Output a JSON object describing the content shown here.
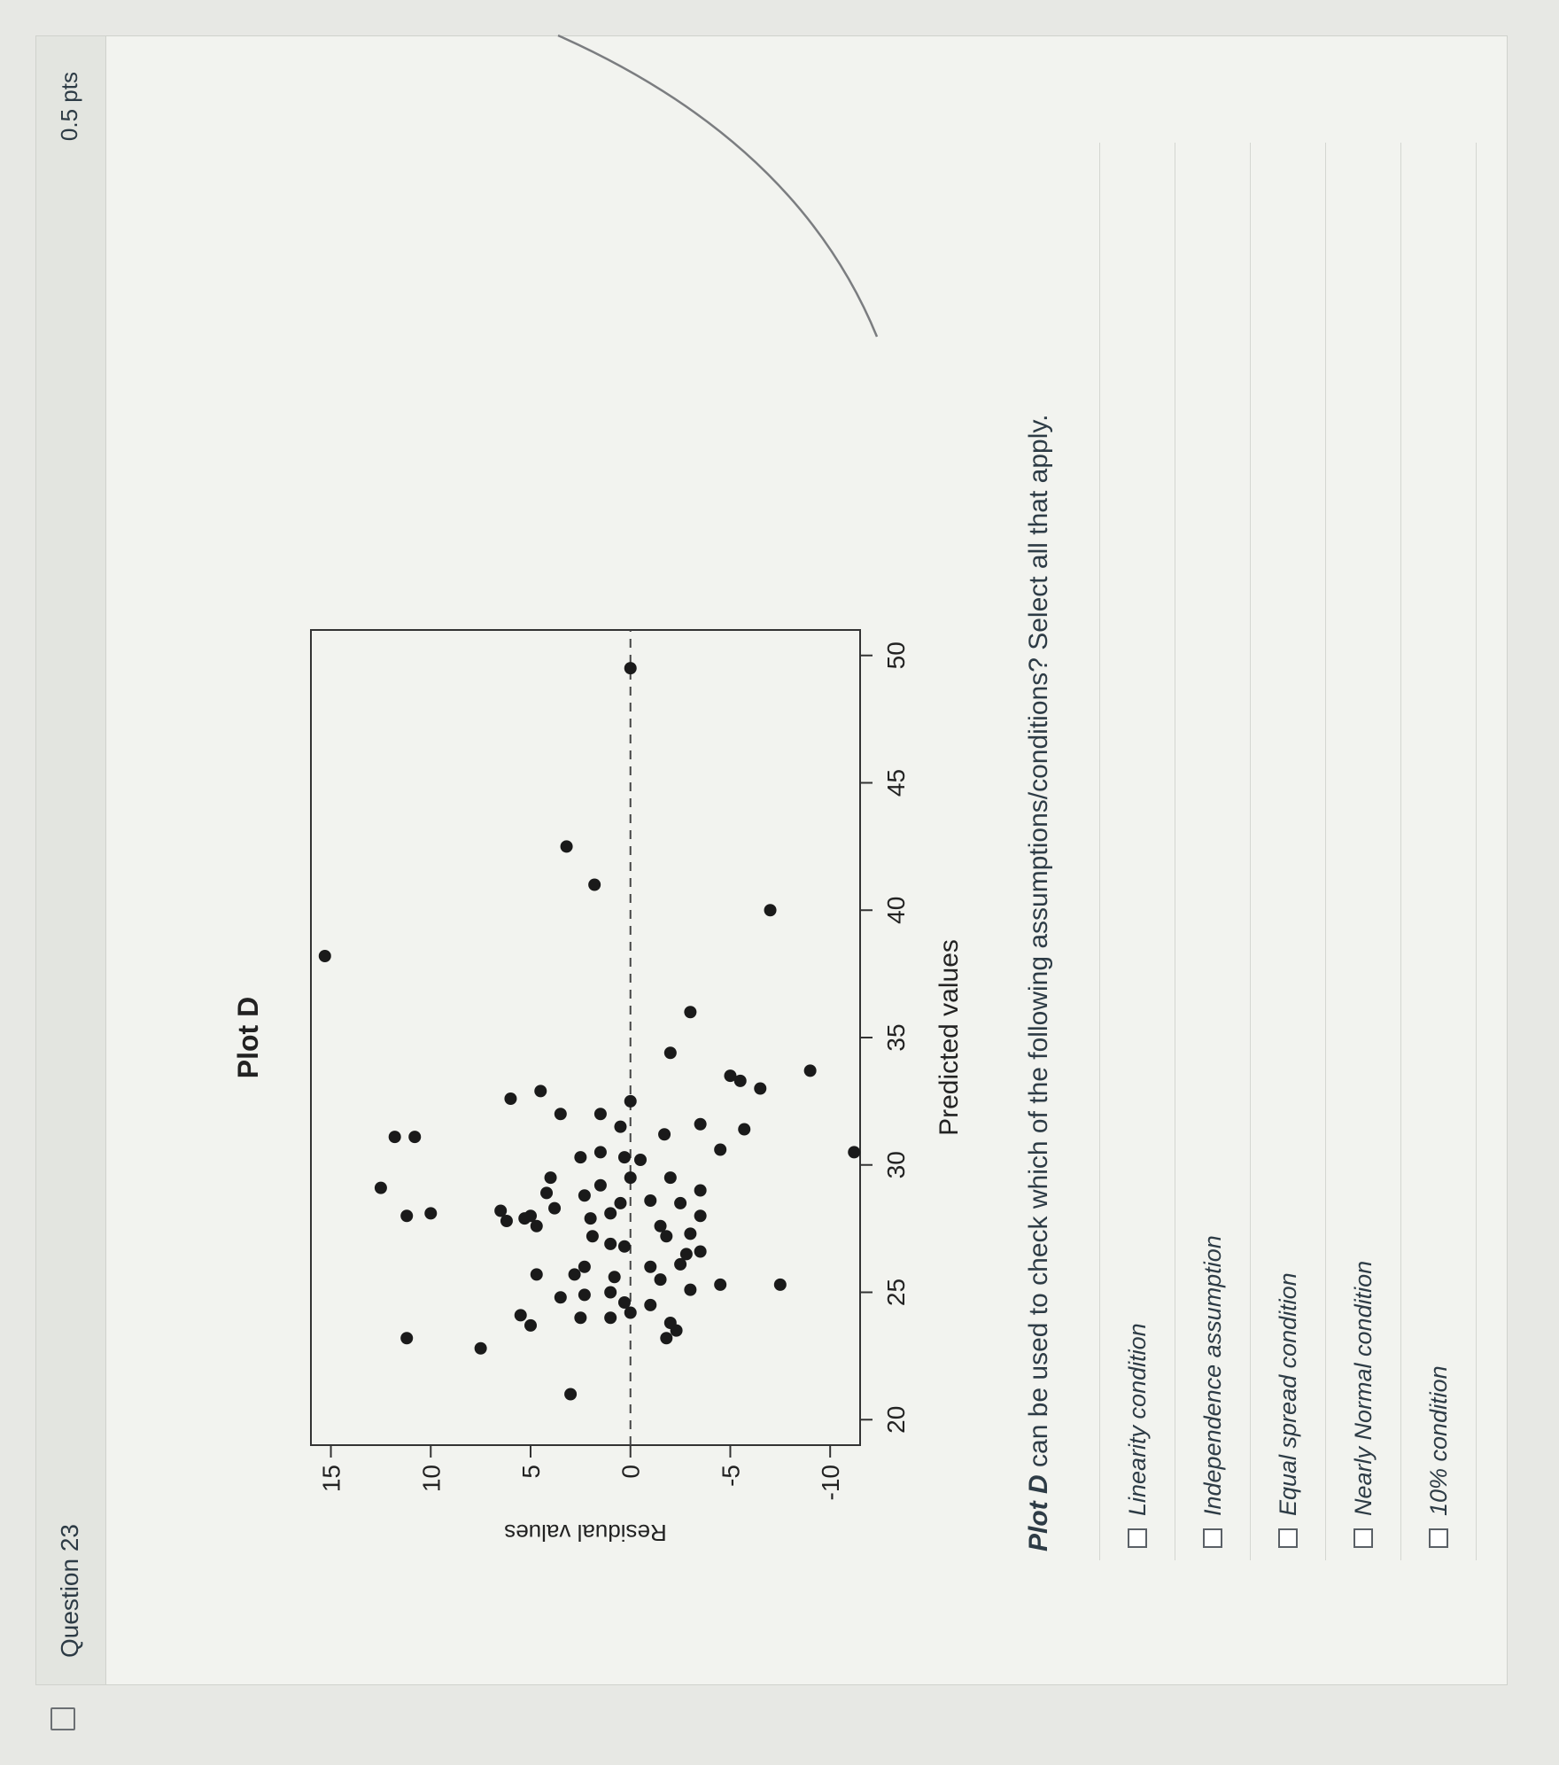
{
  "question": {
    "title": "Question 23",
    "points": "0.5 pts",
    "prompt_emphasis": "Plot D",
    "prompt_rest": " can be used to check which of the following assumptions/conditions? Select all that apply."
  },
  "answers": [
    {
      "label": "Linearity condition"
    },
    {
      "label": "Independence assumption"
    },
    {
      "label": "Equal spread condition"
    },
    {
      "label": "Nearly Normal condition"
    },
    {
      "label": "10% condition"
    }
  ],
  "chart_data": {
    "type": "scatter",
    "title": "Plot D",
    "xlabel": "Predicted values",
    "ylabel": "Residual values",
    "xlim": [
      19,
      51
    ],
    "ylim": [
      -11.5,
      16
    ],
    "xticks": [
      20,
      25,
      30,
      35,
      40,
      45,
      50
    ],
    "yticks": [
      -10,
      -5,
      0,
      5,
      10,
      15
    ],
    "reference_line": {
      "y": 0,
      "style": "dashed"
    },
    "points": [
      [
        21,
        3
      ],
      [
        22.8,
        7.5
      ],
      [
        23.2,
        11.2
      ],
      [
        23.7,
        5.0
      ],
      [
        23.2,
        -1.8
      ],
      [
        23.5,
        -2.3
      ],
      [
        23.8,
        -2.0
      ],
      [
        24.2,
        0.0
      ],
      [
        24.0,
        1.0
      ],
      [
        24.0,
        2.5
      ],
      [
        24.1,
        5.5
      ],
      [
        24.6,
        0.3
      ],
      [
        24.5,
        -1.0
      ],
      [
        24.8,
        3.5
      ],
      [
        24.9,
        2.3
      ],
      [
        25.0,
        1.0
      ],
      [
        25.1,
        -3.0
      ],
      [
        25.3,
        -4.5
      ],
      [
        25.3,
        -7.5
      ],
      [
        25.5,
        -1.5
      ],
      [
        25.7,
        2.8
      ],
      [
        25.7,
        4.7
      ],
      [
        25.6,
        0.8
      ],
      [
        26.0,
        2.3
      ],
      [
        26.1,
        -2.5
      ],
      [
        26.0,
        -1.0
      ],
      [
        26.5,
        -2.8
      ],
      [
        26.6,
        -3.5
      ],
      [
        26.8,
        0.3
      ],
      [
        26.9,
        1.0
      ],
      [
        27.2,
        -1.8
      ],
      [
        27.3,
        -3.0
      ],
      [
        27.2,
        1.9
      ],
      [
        27.6,
        -1.5
      ],
      [
        27.6,
        4.7
      ],
      [
        27.9,
        2.0
      ],
      [
        28.0,
        5.0
      ],
      [
        28.0,
        -3.5
      ],
      [
        28.1,
        1.0
      ],
      [
        28.3,
        3.8
      ],
      [
        28.5,
        -2.5
      ],
      [
        28.6,
        -1.0
      ],
      [
        28.8,
        2.3
      ],
      [
        28.5,
        0.5
      ],
      [
        29.0,
        -3.5
      ],
      [
        29.2,
        1.5
      ],
      [
        29.5,
        0.0
      ],
      [
        29.5,
        -2.0
      ],
      [
        28.0,
        11.2
      ],
      [
        28.1,
        10.0
      ],
      [
        27.8,
        6.2
      ],
      [
        27.9,
        5.3
      ],
      [
        28.2,
        6.5
      ],
      [
        28.9,
        4.2
      ],
      [
        29.5,
        4.0
      ],
      [
        29.1,
        12.5
      ],
      [
        30.3,
        2.5
      ],
      [
        30.5,
        1.5
      ],
      [
        30.2,
        -0.5
      ],
      [
        30.3,
        0.3
      ],
      [
        30.6,
        -4.5
      ],
      [
        31.1,
        11.8
      ],
      [
        31.1,
        10.8
      ],
      [
        31.2,
        -1.7
      ],
      [
        31.4,
        -5.7
      ],
      [
        31.6,
        -3.5
      ],
      [
        31.5,
        0.5
      ],
      [
        30.5,
        -13.0
      ],
      [
        32.0,
        1.5
      ],
      [
        32.5,
        0.0
      ],
      [
        32.0,
        3.5
      ],
      [
        32.6,
        6.0
      ],
      [
        32.9,
        4.5
      ],
      [
        33.0,
        -6.5
      ],
      [
        33.3,
        -5.5
      ],
      [
        33.5,
        -5.0
      ],
      [
        33.7,
        -9.0
      ],
      [
        34.4,
        -2.0
      ],
      [
        36.0,
        -3.0
      ],
      [
        38.2,
        15.3
      ],
      [
        40.0,
        -7.0
      ],
      [
        41.0,
        1.8
      ],
      [
        42.5,
        3.2
      ],
      [
        49.5,
        0.0
      ]
    ]
  }
}
